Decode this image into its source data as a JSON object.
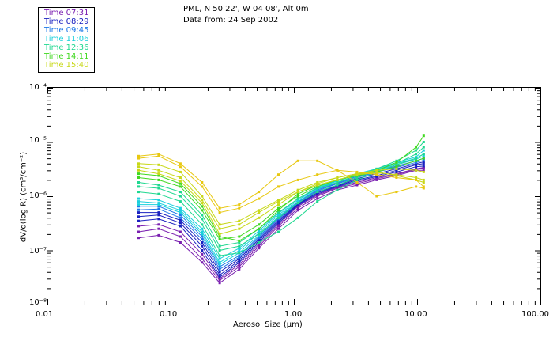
{
  "header": {
    "line1": "PML, N 50 22', W 04 08', Alt 0m",
    "line2": "Data from: 24 Sep 2002"
  },
  "legend": {
    "items": [
      {
        "label": "Time 07:31",
        "color": "#7a1fb0"
      },
      {
        "label": "Time 08:29",
        "color": "#1a20c0"
      },
      {
        "label": "Time 09:45",
        "color": "#1d78e8"
      },
      {
        "label": "Time 11:06",
        "color": "#1ad0dc"
      },
      {
        "label": "Time 12:36",
        "color": "#1fd890"
      },
      {
        "label": "Time 14:11",
        "color": "#40d820"
      },
      {
        "label": "Time 15:40",
        "color": "#c8d818"
      }
    ]
  },
  "chart_data": {
    "type": "line",
    "title": "PML, N 50 22', W 04 08', Alt 0m",
    "subtitle": "Data from: 24 Sep 2002",
    "xlabel": "Aerosol Size (µm)",
    "ylabel": "dV/d(log R) (cm³/cm⁻²)",
    "xscale": "log",
    "yscale": "log",
    "xlim": [
      0.01,
      100.0
    ],
    "ylim": [
      1e-08,
      0.0001
    ],
    "x_ticks": [
      "0.01",
      "0.10",
      "1.00",
      "10.00",
      "100.00"
    ],
    "y_ticks": [
      "10⁻⁸",
      "10⁻⁷",
      "10⁻⁶",
      "10⁻⁵",
      "10⁻⁴"
    ],
    "x": [
      0.055,
      0.08,
      0.12,
      0.18,
      0.25,
      0.36,
      0.52,
      0.75,
      1.08,
      1.55,
      2.25,
      3.25,
      4.7,
      6.8,
      9.8,
      11.3
    ],
    "color_scale": [
      "#7a1fb0",
      "#1a20c0",
      "#1d78e8",
      "#1ad0dc",
      "#1fd890",
      "#40d820",
      "#c8d818",
      "#e8c810"
    ],
    "series": [
      {
        "name": "Time 07:31",
        "values": [
          1.7e-07,
          1.9e-07,
          1.4e-07,
          6e-08,
          2.5e-08,
          4.5e-08,
          1.1e-07,
          2.5e-07,
          5.5e-07,
          9e-07,
          1.3e-06,
          1.6e-06,
          2e-06,
          2.4e-06,
          3e-06,
          3e-06
        ]
      },
      {
        "name": "Time 07:31",
        "values": [
          2.2e-07,
          2.5e-07,
          1.8e-07,
          7e-08,
          2.8e-08,
          5e-08,
          1.2e-07,
          2.8e-07,
          6e-07,
          1e-06,
          1.4e-06,
          1.7e-06,
          2.1e-06,
          2.5e-06,
          3.1e-06,
          3.3e-06
        ]
      },
      {
        "name": "Time 07:31",
        "values": [
          2.8e-07,
          3e-07,
          2.2e-07,
          8.5e-08,
          3e-08,
          5.5e-08,
          1.3e-07,
          3e-07,
          6.5e-07,
          1.05e-06,
          1.45e-06,
          1.8e-06,
          2.2e-06,
          2.6e-06,
          3.2e-06,
          3.4e-06
        ]
      },
      {
        "name": "Time 08:29",
        "values": [
          3.5e-07,
          3.8e-07,
          2.8e-07,
          1e-07,
          3.2e-08,
          6e-08,
          1.4e-07,
          3.2e-07,
          6.8e-07,
          1.1e-06,
          1.5e-06,
          1.9e-06,
          2.3e-06,
          2.8e-06,
          3.5e-06,
          3.6e-06
        ]
      },
      {
        "name": "Time 08:29",
        "values": [
          4.2e-07,
          4.5e-07,
          3.2e-07,
          1.2e-07,
          3.5e-08,
          6.5e-08,
          1.5e-07,
          3.4e-07,
          7e-07,
          1.15e-06,
          1.55e-06,
          2e-06,
          2.4e-06,
          3e-06,
          3.8e-06,
          4e-06
        ]
      },
      {
        "name": "Time 09:45",
        "values": [
          5e-07,
          5e-07,
          3.6e-07,
          1.4e-07,
          4e-08,
          7e-08,
          1.6e-07,
          3.6e-07,
          7.2e-07,
          1.2e-06,
          1.6e-06,
          2.1e-06,
          2.6e-06,
          3.2e-06,
          4e-06,
          4.3e-06
        ]
      },
      {
        "name": "Time 09:45",
        "values": [
          5.6e-07,
          5.8e-07,
          4e-07,
          1.6e-07,
          4.5e-08,
          7.5e-08,
          1.7e-07,
          3.8e-07,
          7.5e-07,
          1.25e-06,
          1.7e-06,
          2.2e-06,
          2.8e-06,
          3.4e-06,
          4.2e-06,
          4.6e-06
        ]
      },
      {
        "name": "Time 09:45",
        "values": [
          6.5e-07,
          6.5e-07,
          4.5e-07,
          1.8e-07,
          5e-08,
          8e-08,
          1.8e-07,
          4e-07,
          7.8e-07,
          1.3e-06,
          1.75e-06,
          2.3e-06,
          2.9e-06,
          3.6e-06,
          4.5e-06,
          5e-06
        ]
      },
      {
        "name": "Time 11:06",
        "values": [
          7e-07,
          7e-07,
          5e-07,
          2e-07,
          5.5e-08,
          9e-08,
          1.9e-07,
          4.2e-07,
          8e-07,
          1.35e-06,
          1.8e-06,
          2.4e-06,
          3e-06,
          3.8e-06,
          4.8e-06,
          5.5e-06
        ]
      },
      {
        "name": "Time 11:06",
        "values": [
          8e-07,
          7.5e-07,
          5.5e-07,
          2.2e-07,
          6e-08,
          1e-07,
          2.1e-07,
          4.5e-07,
          8.5e-07,
          1.4e-06,
          1.9e-06,
          2.5e-06,
          3.1e-06,
          4e-06,
          5e-06,
          6e-06
        ]
      },
      {
        "name": "Time 11:06",
        "values": [
          9e-07,
          8.5e-07,
          6e-07,
          2.5e-07,
          7e-08,
          1.1e-07,
          2.3e-07,
          4.8e-07,
          9e-07,
          1.45e-06,
          1.95e-06,
          2.6e-06,
          3.2e-06,
          4.2e-06,
          5.3e-06,
          7e-06
        ]
      },
      {
        "name": "Time 12:36",
        "values": [
          1.2e-06,
          1.1e-06,
          8e-07,
          3e-07,
          8e-08,
          9e-08,
          1.4e-07,
          2.2e-07,
          4e-07,
          8e-07,
          1.3e-06,
          2e-06,
          2.8e-06,
          3.8e-06,
          5e-06,
          6e-06
        ]
      },
      {
        "name": "Time 12:36",
        "values": [
          1.5e-06,
          1.4e-06,
          1e-06,
          3.8e-07,
          1e-07,
          1.2e-07,
          2e-07,
          4e-07,
          7.5e-07,
          1.2e-06,
          1.6e-06,
          2.2e-06,
          3e-06,
          4e-06,
          6e-06,
          8e-06
        ]
      },
      {
        "name": "Time 12:36",
        "values": [
          1.8e-06,
          1.6e-06,
          1.2e-06,
          4.5e-07,
          1.2e-07,
          1.4e-07,
          2.5e-07,
          5e-07,
          9e-07,
          1.4e-06,
          1.8e-06,
          2.4e-06,
          3.2e-06,
          4.5e-06,
          7e-06,
          1e-05
        ]
      },
      {
        "name": "Time 14:11",
        "values": [
          2.2e-06,
          2e-06,
          1.5e-06,
          5.5e-07,
          1.6e-07,
          1.8e-07,
          3e-07,
          6e-07,
          1e-06,
          1.5e-06,
          2e-06,
          2.5e-06,
          3e-06,
          4.2e-06,
          8e-06,
          1.3e-05
        ]
      },
      {
        "name": "Time 14:11",
        "values": [
          2.6e-06,
          2.4e-06,
          1.7e-06,
          6.5e-07,
          1.8e-07,
          1.5e-07,
          2.5e-07,
          5.5e-07,
          1.1e-06,
          1.6e-06,
          2e-06,
          2.4e-06,
          2.8e-06,
          3.5e-06,
          4.5e-06,
          5e-06
        ]
      },
      {
        "name": "Time 14:11",
        "values": [
          3e-06,
          2.6e-06,
          1.9e-06,
          7.5e-07,
          2e-07,
          2.5e-07,
          4e-07,
          7e-07,
          1.2e-06,
          1.7e-06,
          2.2e-06,
          2.6e-06,
          3e-06,
          3.2e-06,
          3e-06,
          2.8e-06
        ]
      },
      {
        "name": "Time 15:40",
        "values": [
          3.5e-06,
          3e-06,
          2.2e-06,
          8.5e-07,
          2.5e-07,
          3e-07,
          5e-07,
          8e-07,
          1.2e-06,
          1.6e-06,
          2e-06,
          2.5e-06,
          2.7e-06,
          2.5e-06,
          2.2e-06,
          2e-06
        ]
      },
      {
        "name": "Time 15:40",
        "values": [
          4e-06,
          3.8e-06,
          2.8e-06,
          1e-06,
          3e-07,
          3.5e-07,
          5.5e-07,
          8.5e-07,
          1.3e-06,
          1.8e-06,
          2.2e-06,
          2.6e-06,
          2.8e-06,
          2.4e-06,
          2e-06,
          1.8e-06
        ]
      },
      {
        "name": "Time 15:40",
        "values": [
          5e-06,
          5.5e-06,
          3.5e-06,
          1.5e-06,
          5e-07,
          6e-07,
          9e-07,
          1.5e-06,
          2e-06,
          2.5e-06,
          3e-06,
          2.8e-06,
          2.5e-06,
          2.2e-06,
          2e-06,
          1.5e-06
        ]
      },
      {
        "name": "Time 15:40",
        "values": [
          5.5e-06,
          6e-06,
          4e-06,
          1.8e-06,
          6e-07,
          7e-07,
          1.2e-06,
          2.5e-06,
          4.5e-06,
          4.5e-06,
          3e-06,
          1.8e-06,
          1e-06,
          1.2e-06,
          1.5e-06,
          1.4e-06
        ]
      }
    ]
  }
}
